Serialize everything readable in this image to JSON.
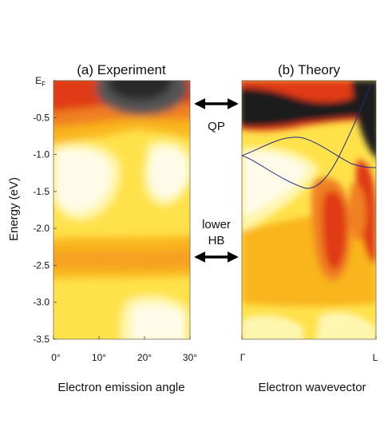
{
  "chart_data": [
    {
      "type": "heatmap",
      "title": "(a) Experiment",
      "xlabel": "Electron emission angle",
      "ylabel": "Energy (eV)",
      "x_ticks": [
        "0°",
        "10°",
        "20°",
        "30°"
      ],
      "x_tick_values": [
        0,
        10,
        20,
        30
      ],
      "xlim": [
        0,
        30
      ],
      "y_tick_labels": [
        "E",
        "-0.5",
        "-1.0",
        "-1.5",
        "-2.0",
        "-2.5",
        "-3.0",
        "-3.5"
      ],
      "y_tick_values": [
        0,
        -0.5,
        -1.0,
        -1.5,
        -2.0,
        -2.5,
        -3.0,
        -3.5
      ],
      "ylim": [
        -3.5,
        0
      ],
      "ef_subscript": "F",
      "colormap": [
        "#fffbe8",
        "#fff6b0",
        "#ffe14a",
        "#f9b51a",
        "#f08020",
        "#e03a12",
        "#1a1a1a"
      ]
    },
    {
      "type": "heatmap",
      "title": "(b) Theory",
      "xlabel": "Electron wavevector",
      "x_ticks": [
        "Γ",
        "L"
      ],
      "ylim": [
        -3.5,
        0
      ],
      "colormap": [
        "#fffbe8",
        "#fff6b0",
        "#ffe14a",
        "#f9b51a",
        "#f08020",
        "#e03a12",
        "#1a1a1a"
      ],
      "band_color": "#1f2a8c"
    }
  ],
  "annotations": {
    "qp": "QP",
    "lower_hb_line1": "lower",
    "lower_hb_line2": "HB"
  }
}
